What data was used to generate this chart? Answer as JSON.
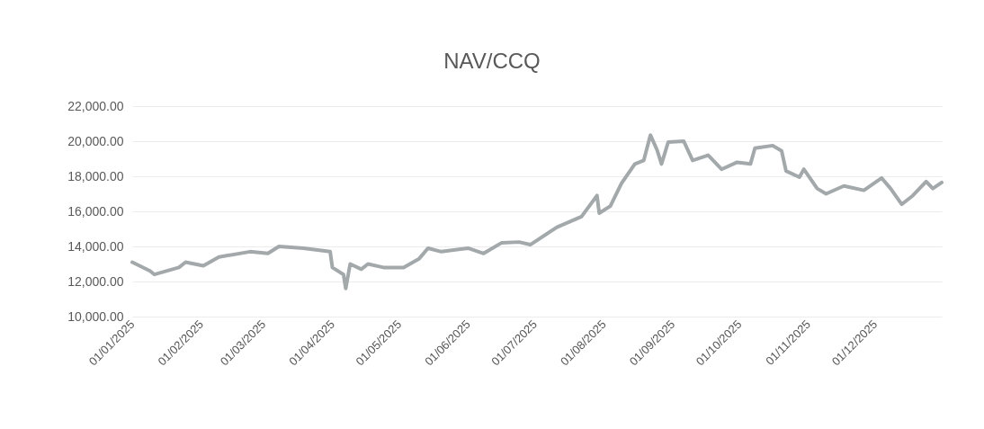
{
  "chart_data": {
    "type": "line",
    "title": "NAV/CCQ",
    "x": [
      "2025-01-01",
      "2025-01-09",
      "2025-01-11",
      "2025-01-22",
      "2025-01-25",
      "2025-02-02",
      "2025-02-09",
      "2025-02-23",
      "2025-03-03",
      "2025-03-08",
      "2025-03-19",
      "2025-03-31",
      "2025-04-01",
      "2025-04-06",
      "2025-04-07",
      "2025-04-09",
      "2025-04-14",
      "2025-04-17",
      "2025-04-24",
      "2025-05-03",
      "2025-05-10",
      "2025-05-14",
      "2025-05-20",
      "2025-06-01",
      "2025-06-08",
      "2025-06-16",
      "2025-06-24",
      "2025-06-29",
      "2025-07-11",
      "2025-07-22",
      "2025-07-29",
      "2025-07-30",
      "2025-08-04",
      "2025-08-09",
      "2025-08-15",
      "2025-08-19",
      "2025-08-22",
      "2025-08-25",
      "2025-08-27",
      "2025-08-30",
      "2025-09-06",
      "2025-09-10",
      "2025-09-17",
      "2025-09-23",
      "2025-09-30",
      "2025-10-06",
      "2025-10-08",
      "2025-10-16",
      "2025-10-20",
      "2025-10-22",
      "2025-10-28",
      "2025-10-30",
      "2025-11-05",
      "2025-11-09",
      "2025-11-17",
      "2025-11-26",
      "2025-12-04",
      "2025-12-08",
      "2025-12-13",
      "2025-12-18",
      "2025-12-24",
      "2025-12-27",
      "2025-12-31"
    ],
    "series": [
      {
        "color": "#a3a8ab",
        "values": [
          13100,
          12600,
          12400,
          12800,
          13100,
          12900,
          13400,
          13700,
          13600,
          14000,
          13900,
          13700,
          12800,
          12400,
          11600,
          13000,
          12700,
          13000,
          12800,
          12800,
          13300,
          13900,
          13700,
          13900,
          13600,
          14200,
          14250,
          14100,
          15100,
          15700,
          16900,
          15900,
          16300,
          17600,
          18700,
          18900,
          20350,
          19500,
          18700,
          19950,
          20000,
          18900,
          19200,
          18400,
          18800,
          18700,
          19600,
          19750,
          19450,
          18300,
          17950,
          18400,
          17300,
          17000,
          17450,
          17200,
          17900,
          17300,
          16400,
          16900,
          17700,
          17300,
          17650
        ]
      }
    ],
    "xlim": [
      "2025-01-01",
      "2025-12-31"
    ],
    "xticks": [
      {
        "value": "2025-01-01",
        "label": "01/01/2025"
      },
      {
        "value": "2025-02-01",
        "label": "01/02/2025"
      },
      {
        "value": "2025-03-01",
        "label": "01/03/2025"
      },
      {
        "value": "2025-04-01",
        "label": "01/04/2025"
      },
      {
        "value": "2025-05-01",
        "label": "01/05/2025"
      },
      {
        "value": "2025-06-01",
        "label": "01/06/2025"
      },
      {
        "value": "2025-07-01",
        "label": "01/07/2025"
      },
      {
        "value": "2025-08-01",
        "label": "01/08/2025"
      },
      {
        "value": "2025-09-01",
        "label": "01/09/2025"
      },
      {
        "value": "2025-10-01",
        "label": "01/10/2025"
      },
      {
        "value": "2025-11-01",
        "label": "01/11/2025"
      },
      {
        "value": "2025-12-01",
        "label": "01/12/2025"
      }
    ],
    "ylim": [
      10000,
      22000
    ],
    "yticks": [
      {
        "value": 10000,
        "label": "10,000.00"
      },
      {
        "value": 12000,
        "label": "12,000.00"
      },
      {
        "value": 14000,
        "label": "14,000.00"
      },
      {
        "value": 16000,
        "label": "16,000.00"
      },
      {
        "value": 18000,
        "label": "18,000.00"
      },
      {
        "value": 20000,
        "label": "20,000.00"
      },
      {
        "value": 22000,
        "label": "22,000.00"
      }
    ],
    "grid": "y",
    "line_style": "solid",
    "marker": "none"
  }
}
